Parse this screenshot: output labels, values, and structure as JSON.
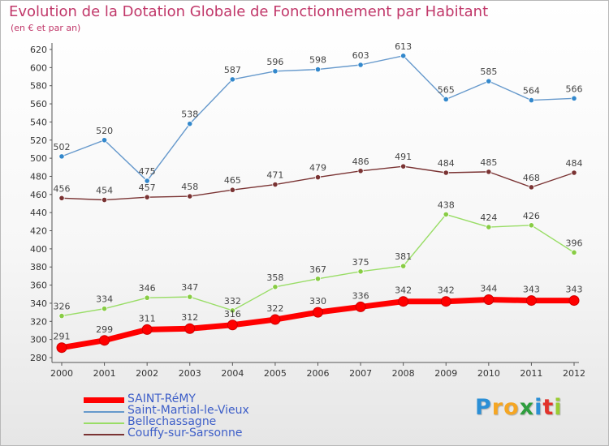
{
  "title": "Evolution de la Dotation Globale de Fonctionnement par Habitant",
  "subtitle": "(en € et par an)",
  "colors": {
    "title": "#c1386a",
    "legend_text": "#3d5ec8",
    "axis": "#555555",
    "tick_label": "#333333",
    "data_label": "#444444"
  },
  "legend": [
    {
      "label": "SAINT-RéMY",
      "color": "#ff0000",
      "width": 6
    },
    {
      "label": "Saint-Martial-le-Vieux",
      "color": "#6699cc",
      "width": 1.5
    },
    {
      "label": "Bellechassagne",
      "color": "#99dd66",
      "width": 1.5
    },
    {
      "label": "Couffy-sur-Sarsonne",
      "color": "#7a3333",
      "width": 1.5
    }
  ],
  "brand": {
    "letters": [
      "P",
      "r",
      "o",
      "x",
      "i",
      "t",
      "i"
    ],
    "colors": [
      "#2b8fd6",
      "#f5a623",
      "#f5a623",
      "#2e9e3e",
      "#2b8fd6",
      "#e2332b",
      "#9acd32"
    ]
  },
  "chart_data": {
    "type": "line",
    "x": [
      2000,
      2001,
      2002,
      2003,
      2004,
      2005,
      2006,
      2007,
      2008,
      2009,
      2010,
      2011,
      2012
    ],
    "ylim": [
      280,
      620
    ],
    "yticks": [
      280,
      300,
      320,
      340,
      360,
      380,
      400,
      420,
      440,
      460,
      480,
      500,
      520,
      540,
      560,
      580,
      600,
      620
    ],
    "grid": false,
    "legend_position": "bottom-left",
    "series": [
      {
        "name": "Couffy-sur-Sarsonne",
        "color": "#7a3333",
        "marker": "#7a3333",
        "values": [
          456,
          454,
          457,
          458,
          465,
          471,
          479,
          486,
          491,
          484,
          485,
          468,
          484
        ]
      },
      {
        "name": "Bellechassagne",
        "color": "#99dd66",
        "marker": "#88cc44",
        "values": [
          326,
          334,
          346,
          347,
          332,
          358,
          367,
          375,
          381,
          438,
          424,
          426,
          396
        ]
      },
      {
        "name": "Saint-Martial-le-Vieux",
        "color": "#6699cc",
        "marker": "#3388cc",
        "values": [
          502,
          520,
          475,
          538,
          587,
          596,
          598,
          603,
          613,
          565,
          585,
          564,
          566
        ]
      },
      {
        "name": "SAINT-RéMY",
        "color": "#ff0000",
        "marker": "#ff0000",
        "values": [
          291,
          299,
          311,
          312,
          316,
          322,
          330,
          336,
          342,
          342,
          344,
          343,
          343
        ]
      }
    ]
  }
}
